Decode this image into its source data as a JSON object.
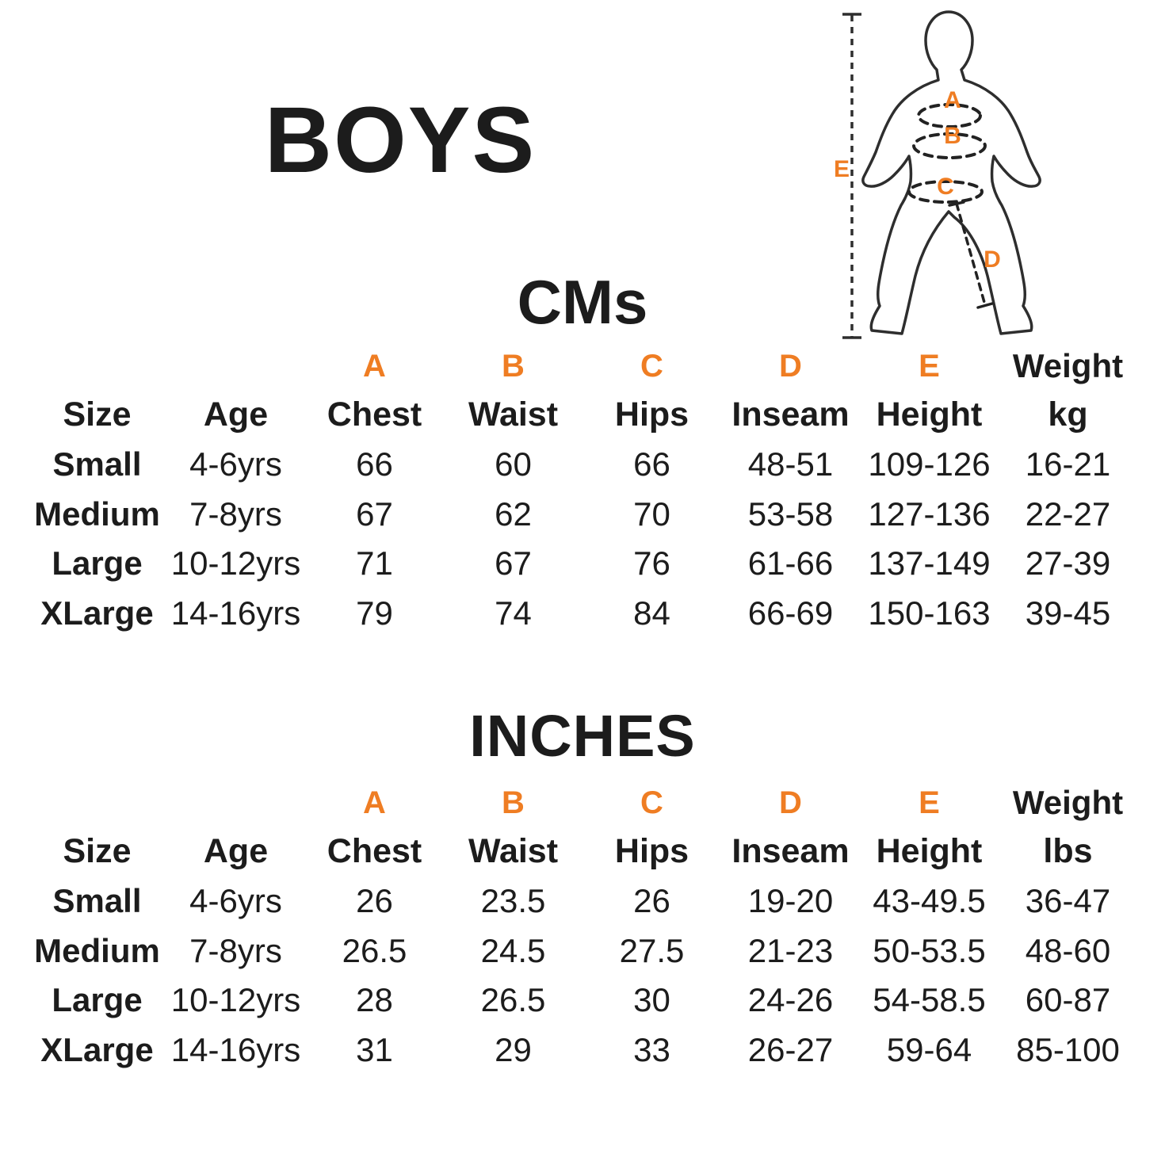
{
  "page": {
    "title": "BOYS"
  },
  "colors": {
    "accent": "#EF7D23",
    "text": "#1c1c1c",
    "figure_outline": "#2e2e2e"
  },
  "figure": {
    "labels": {
      "chest": "A",
      "waist": "B",
      "hips": "C",
      "inseam": "D",
      "height": "E"
    }
  },
  "tables": [
    {
      "id": "cms",
      "title": "CMs",
      "letters": [
        "",
        "",
        "A",
        "B",
        "C",
        "D",
        "E",
        "Weight"
      ],
      "headers": [
        "Size",
        "Age",
        "Chest",
        "Waist",
        "Hips",
        "Inseam",
        "Height",
        "kg"
      ],
      "rows": [
        [
          "Small",
          "4-6yrs",
          "66",
          "60",
          "66",
          "48-51",
          "109-126",
          "16-21"
        ],
        [
          "Medium",
          "7-8yrs",
          "67",
          "62",
          "70",
          "53-58",
          "127-136",
          "22-27"
        ],
        [
          "Large",
          "10-12yrs",
          "71",
          "67",
          "76",
          "61-66",
          "137-149",
          "27-39"
        ],
        [
          "XLarge",
          "14-16yrs",
          "79",
          "74",
          "84",
          "66-69",
          "150-163",
          "39-45"
        ]
      ]
    },
    {
      "id": "inches",
      "title": "INCHES",
      "letters": [
        "",
        "",
        "A",
        "B",
        "C",
        "D",
        "E",
        "Weight"
      ],
      "headers": [
        "Size",
        "Age",
        "Chest",
        "Waist",
        "Hips",
        "Inseam",
        "Height",
        "lbs"
      ],
      "rows": [
        [
          "Small",
          "4-6yrs",
          "26",
          "23.5",
          "26",
          "19-20",
          "43-49.5",
          "36-47"
        ],
        [
          "Medium",
          "7-8yrs",
          "26.5",
          "24.5",
          "27.5",
          "21-23",
          "50-53.5",
          "48-60"
        ],
        [
          "Large",
          "10-12yrs",
          "28",
          "26.5",
          "30",
          "24-26",
          "54-58.5",
          "60-87"
        ],
        [
          "XLarge",
          "14-16yrs",
          "31",
          "29",
          "33",
          "26-27",
          "59-64",
          "85-100"
        ]
      ]
    }
  ]
}
